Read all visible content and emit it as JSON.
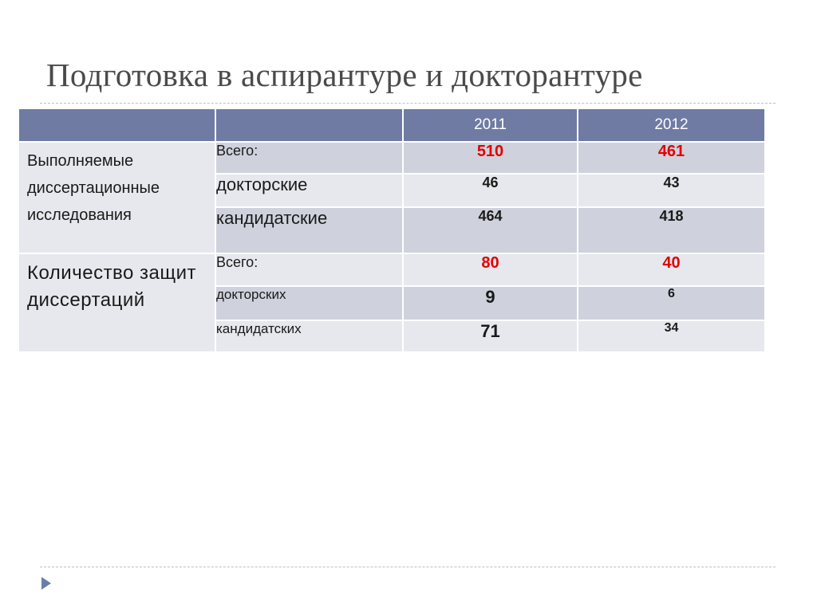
{
  "title": "Подготовка в аспирантуре и докторантуре",
  "table": {
    "header": [
      "",
      "",
      "2011",
      "2012"
    ],
    "groups": [
      {
        "label": "Выполняемые диссертационные исследования",
        "rows": [
          {
            "label": "Всего:",
            "v2011": "510",
            "v2012": "461"
          },
          {
            "label": "докторские",
            "v2011": "46",
            "v2012": "43"
          },
          {
            "label": "кандидатские",
            "v2011": "464",
            "v2012": "418"
          }
        ]
      },
      {
        "label": "Количество защит диссертаций",
        "rows": [
          {
            "label": "Всего:",
            "v2011": "80",
            "v2012": "40"
          },
          {
            "label": "докторских",
            "v2011": "9",
            "v2012": "6"
          },
          {
            "label": "кандидатских",
            "v2011": "71",
            "v2012": "34"
          }
        ]
      }
    ]
  },
  "colors": {
    "header_bg": "#6f7ba3",
    "row_dark": "#cfd2dc",
    "row_light": "#e7e8ed",
    "highlight": "#e00000",
    "arrow": "#6a7fa8"
  },
  "icons": {
    "nav": "triangle-right-icon"
  }
}
